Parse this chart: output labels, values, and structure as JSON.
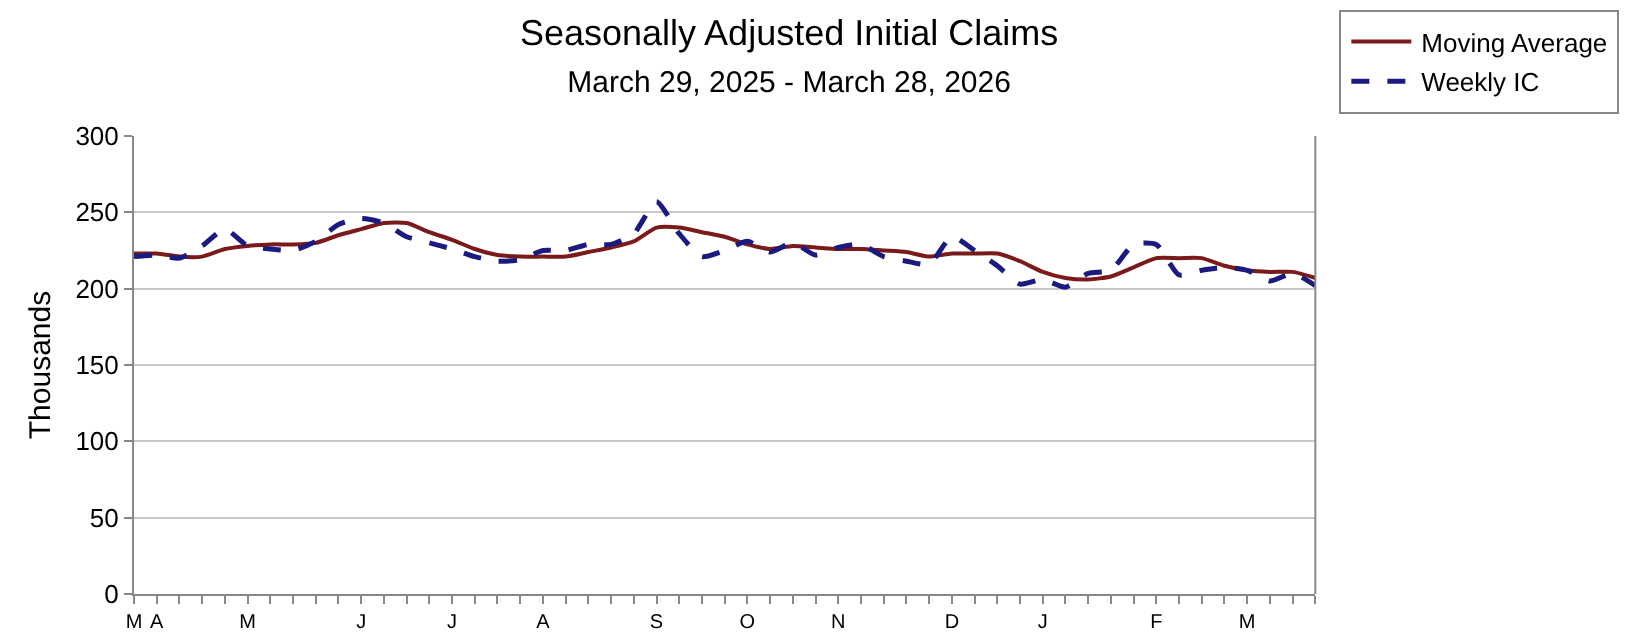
{
  "chart_data": {
    "type": "line",
    "title": "Seasonally Adjusted Initial Claims",
    "subtitle": "March 29, 2025 - March 28, 2026",
    "ylabel": "Thousands",
    "categories": [
      "M",
      "A",
      null,
      null,
      null,
      "M",
      null,
      null,
      null,
      null,
      "J",
      null,
      null,
      null,
      "J",
      null,
      null,
      null,
      "A",
      null,
      null,
      null,
      null,
      "S",
      null,
      null,
      null,
      "O",
      null,
      null,
      null,
      "N",
      null,
      null,
      null,
      null,
      "D",
      null,
      null,
      null,
      "J",
      null,
      null,
      null,
      null,
      "F",
      null,
      null,
      null,
      "M",
      null,
      null,
      null
    ],
    "series": [
      {
        "name": "Moving Average",
        "color": "#7a1a1a",
        "line_style": "solid",
        "values": [
          223,
          223,
          221,
          221,
          226,
          228,
          229,
          229,
          230,
          235,
          239,
          243,
          243,
          237,
          232,
          226,
          222,
          221,
          221,
          221,
          224,
          227,
          231,
          240,
          240,
          237,
          234,
          229,
          226,
          228,
          227,
          226,
          226,
          225,
          224,
          221,
          223,
          223,
          223,
          218,
          211,
          207,
          206,
          208,
          214,
          220,
          220,
          220,
          215,
          212,
          211,
          211,
          207
        ]
      },
      {
        "name": "Weekly IC",
        "color": "#1a1a80",
        "line_style": "dashed",
        "values": [
          221,
          222,
          220,
          228,
          239,
          228,
          226,
          225,
          231,
          242,
          246,
          243,
          234,
          230,
          226,
          221,
          218,
          219,
          225,
          225,
          229,
          229,
          236,
          257,
          236,
          221,
          225,
          231,
          224,
          230,
          222,
          227,
          229,
          221,
          218,
          216,
          234,
          225,
          215,
          203,
          206,
          201,
          210,
          212,
          229,
          229,
          209,
          212,
          214,
          212,
          205,
          210,
          202
        ]
      }
    ],
    "ylim": [
      0,
      300
    ],
    "yticks": [
      0,
      50,
      100,
      150,
      200,
      250,
      300
    ],
    "grid": "y",
    "legend": "top right"
  }
}
